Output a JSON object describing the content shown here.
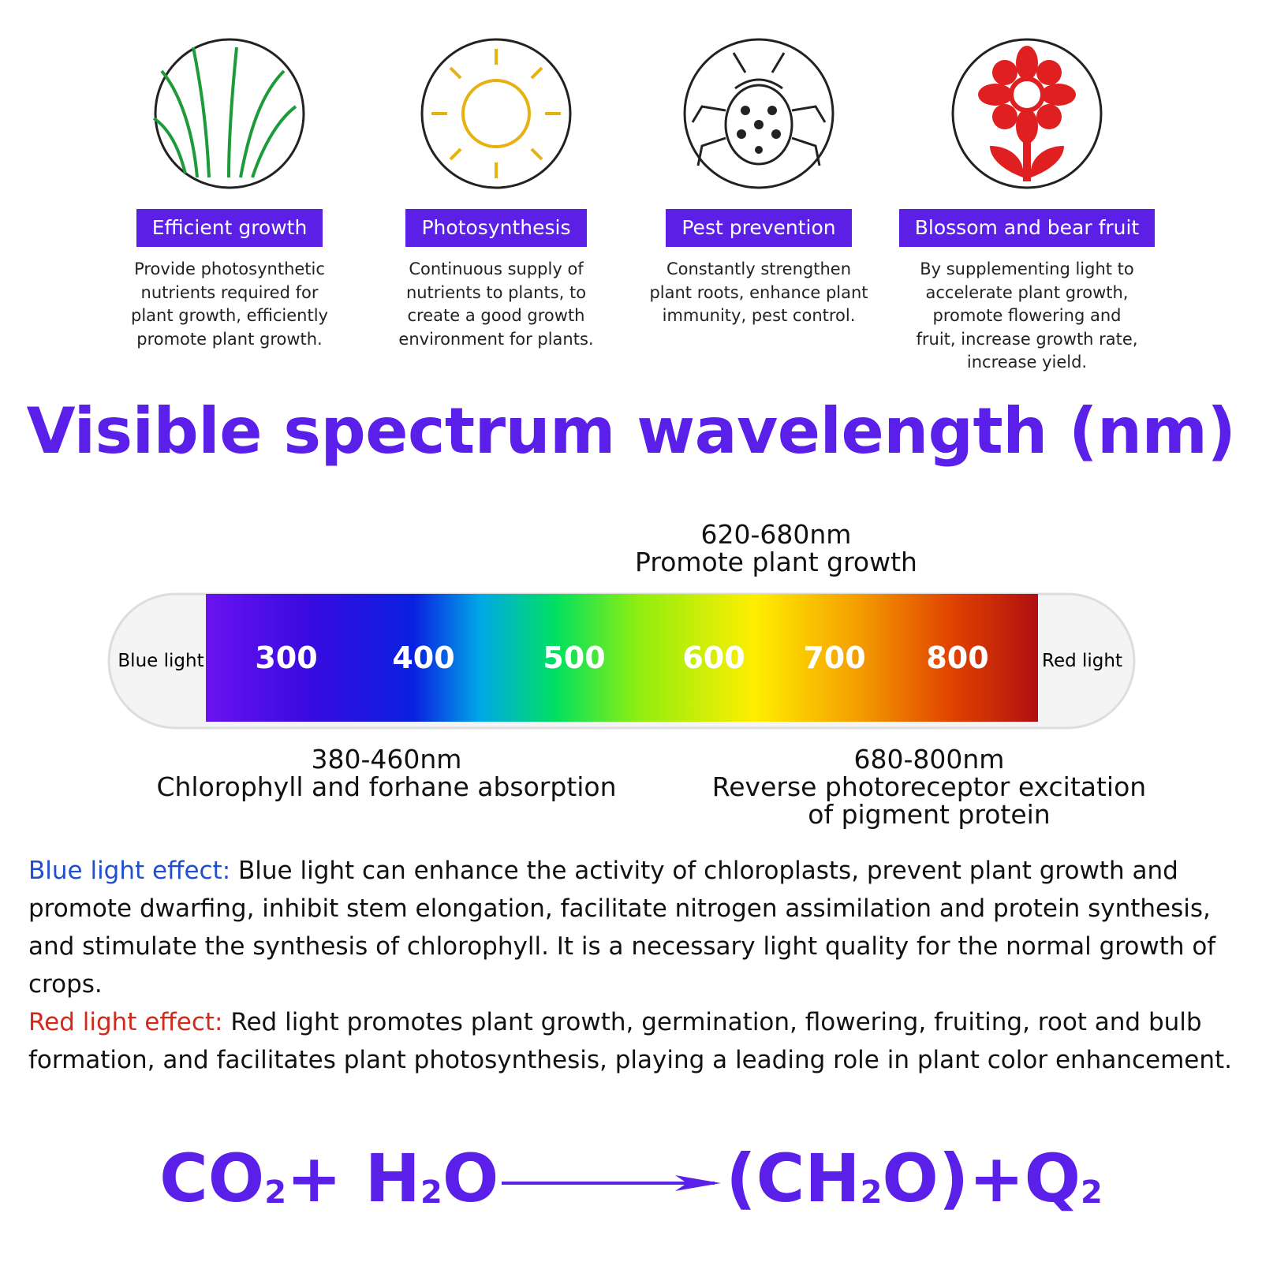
{
  "features": [
    {
      "title": "Efficient growth",
      "lines": [
        "Provide photosynthetic",
        "nutrients required for",
        "plant growth, efficiently",
        "promote plant growth."
      ]
    },
    {
      "title": "Photosynthesis",
      "lines": [
        "Continuous supply of",
        "nutrients to plants, to",
        "create a good growth",
        "environment for plants."
      ]
    },
    {
      "title": "Pest prevention",
      "lines": [
        "Constantly strengthen",
        "plant roots, enhance plant",
        "immunity, pest control."
      ]
    },
    {
      "title": "Blossom and bear fruit",
      "lines": [
        "By supplementing light to",
        "accelerate plant growth,",
        "promote flowering and",
        "fruit, increase growth rate,",
        "increase yield."
      ]
    }
  ],
  "title": "Visible spectrum wavelength (nm)",
  "spectrum": {
    "left_label": "Blue light",
    "right_label": "Red light",
    "scale": [
      300,
      400,
      500,
      600,
      700,
      800
    ]
  },
  "annotations": [
    {
      "range": "620-680nm",
      "lines": [
        "Promote plant growth"
      ]
    },
    {
      "range": "380-460nm",
      "lines": [
        "Chlorophyll and forhane absorption"
      ]
    },
    {
      "range": "680-800nm",
      "lines": [
        "Reverse photoreceptor excitation",
        "of pigment protein"
      ]
    }
  ],
  "effects": [
    {
      "label": "Blue light effect:",
      "text": "Blue light can enhance the activity of chloroplasts, prevent plant growth and promote dwarfing, inhibit stem elongation, facilitate nitrogen assimilation and protein synthesis, and stimulate the synthesis of chlorophyll.  It is a necessary light quality for the normal growth of crops."
    },
    {
      "label": "Red light effect:",
      "text": "Red light promotes plant growth, germination, flowering, fruiting, root and bulb formation, and facilitates plant photosynthesis, playing a leading role in plant color enhancement."
    }
  ],
  "formula": {
    "left": [
      "CO",
      "2",
      "+ H",
      "2",
      "O"
    ],
    "right": [
      "(CH",
      "2",
      "O)+Q",
      "2"
    ]
  }
}
